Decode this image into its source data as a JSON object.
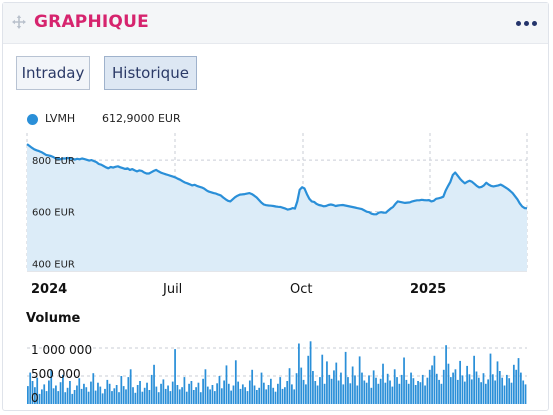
{
  "widget": {
    "title": "GRAPHIQUE",
    "drag_icon": "move-icon",
    "menu_icon": "more-dots-icon"
  },
  "tabs": [
    {
      "label": "Intraday",
      "active": false
    },
    {
      "label": "Historique",
      "active": true
    }
  ],
  "legend": {
    "name": "LVMH",
    "value": "612,9000 EUR"
  },
  "colors": {
    "accent": "#d6246e",
    "line": "#2a8fd8",
    "area": "#dcecf8",
    "bars": "#2a8fd8"
  },
  "chart_data": [
    {
      "type": "area",
      "title": "",
      "series": [
        {
          "name": "LVMH",
          "values": [
            862,
            855,
            848,
            842,
            838,
            835,
            831,
            826,
            820,
            818,
            816,
            812,
            806,
            806,
            803,
            806,
            806,
            808,
            806,
            805,
            802,
            805,
            803,
            806,
            804,
            801,
            798,
            800,
            796,
            792,
            785,
            782,
            777,
            772,
            768,
            773,
            771,
            774,
            776,
            772,
            769,
            766,
            768,
            762,
            765,
            760,
            756,
            760,
            758,
            752,
            748,
            748,
            753,
            758,
            762,
            756,
            751,
            748,
            745,
            742,
            739,
            736,
            733,
            728,
            724,
            718,
            713,
            710,
            706,
            702,
            704,
            700,
            697,
            694,
            690,
            683,
            678,
            675,
            672,
            670,
            666,
            663,
            655,
            648,
            642,
            640,
            648,
            656,
            662,
            666,
            667,
            668,
            670,
            672,
            668,
            662,
            655,
            645,
            635,
            628,
            625,
            624,
            623,
            622,
            620,
            619,
            618,
            615,
            612,
            608,
            610,
            614,
            612,
            640,
            685,
            695,
            690,
            668,
            650,
            640,
            638,
            630,
            626,
            624,
            621,
            622,
            626,
            628,
            626,
            622,
            624,
            625,
            626,
            624,
            622,
            620,
            618,
            616,
            614,
            612,
            610,
            605,
            600,
            598,
            592,
            590,
            590,
            596,
            598,
            596,
            596,
            604,
            612,
            618,
            630,
            640,
            638,
            636,
            634,
            635,
            636,
            640,
            642,
            644,
            644,
            646,
            645,
            644,
            645,
            640,
            642,
            650,
            652,
            654,
            658,
            682,
            700,
            716,
            742,
            752,
            740,
            728,
            718,
            710,
            716,
            720,
            716,
            708,
            700,
            694,
            696,
            702,
            712,
            705,
            700,
            698,
            700,
            702,
            705,
            700,
            694,
            688,
            680,
            672,
            660,
            648,
            632,
            620,
            614,
            613
          ]
        }
      ],
      "xlabels": [
        "2024",
        "Juil",
        "Oct",
        "2025"
      ],
      "ylabels": [
        "800 EUR",
        "600 EUR",
        "400 EUR"
      ],
      "ylabel_values": [
        800,
        600,
        400
      ],
      "ylim": [
        370,
        905
      ],
      "grid": true
    },
    {
      "type": "bar",
      "title": "Volume",
      "series": [
        {
          "name": "Volume",
          "values": [
            320000,
            560000,
            410000,
            300000,
            470000,
            180000,
            260000,
            350000,
            230000,
            420000,
            610000,
            280000,
            330000,
            230000,
            390000,
            520000,
            210000,
            290000,
            410000,
            180000,
            250000,
            330000,
            460000,
            270000,
            360000,
            300000,
            220000,
            400000,
            550000,
            240000,
            380000,
            310000,
            190000,
            270000,
            430000,
            360000,
            230000,
            280000,
            340000,
            210000,
            500000,
            320000,
            260000,
            480000,
            620000,
            300000,
            200000,
            340000,
            410000,
            220000,
            290000,
            380000,
            250000,
            520000,
            700000,
            310000,
            210000,
            360000,
            440000,
            270000,
            330000,
            230000,
            400000,
            980000,
            340000,
            260000,
            300000,
            480000,
            220000,
            360000,
            410000,
            250000,
            300000,
            380000,
            210000,
            450000,
            620000,
            310000,
            260000,
            340000,
            230000,
            370000,
            500000,
            280000,
            420000,
            690000,
            360000,
            240000,
            330000,
            780000,
            400000,
            270000,
            350000,
            300000,
            230000,
            420000,
            610000,
            330000,
            250000,
            290000,
            560000,
            380000,
            260000,
            340000,
            450000,
            290000,
            220000,
            360000,
            480000,
            270000,
            300000,
            410000,
            640000,
            350000,
            260000,
            550000,
            1080000,
            650000,
            430000,
            350000,
            860000,
            1120000,
            590000,
            410000,
            330000,
            480000,
            880000,
            360000,
            760000,
            520000,
            450000,
            600000,
            740000,
            420000,
            560000,
            350000,
            930000,
            480000,
            370000,
            670000,
            510000,
            330000,
            850000,
            560000,
            420000,
            380000,
            510000,
            290000,
            600000,
            470000,
            360000,
            450000,
            720000,
            380000,
            540000,
            420000,
            310000,
            620000,
            480000,
            360000,
            520000,
            830000,
            430000,
            360000,
            560000,
            460000,
            340000,
            410000,
            390000,
            520000,
            330000,
            470000,
            610000,
            690000,
            860000,
            540000,
            430000,
            360000,
            610000,
            1050000,
            720000,
            480000,
            560000,
            620000,
            430000,
            770000,
            510000,
            400000,
            680000,
            530000,
            440000,
            860000,
            580000,
            470000,
            390000,
            550000,
            360000,
            440000,
            900000,
            530000,
            420000,
            760000,
            590000,
            470000,
            330000,
            520000,
            460000,
            380000,
            700000,
            610000,
            820000,
            560000,
            420000,
            350000
          ]
        }
      ],
      "ylabels": [
        "1 000 000",
        "500 000",
        "0"
      ],
      "ylabel_values": [
        1000000,
        500000,
        0
      ],
      "ylim": [
        0,
        1250000
      ],
      "grid": true
    }
  ]
}
